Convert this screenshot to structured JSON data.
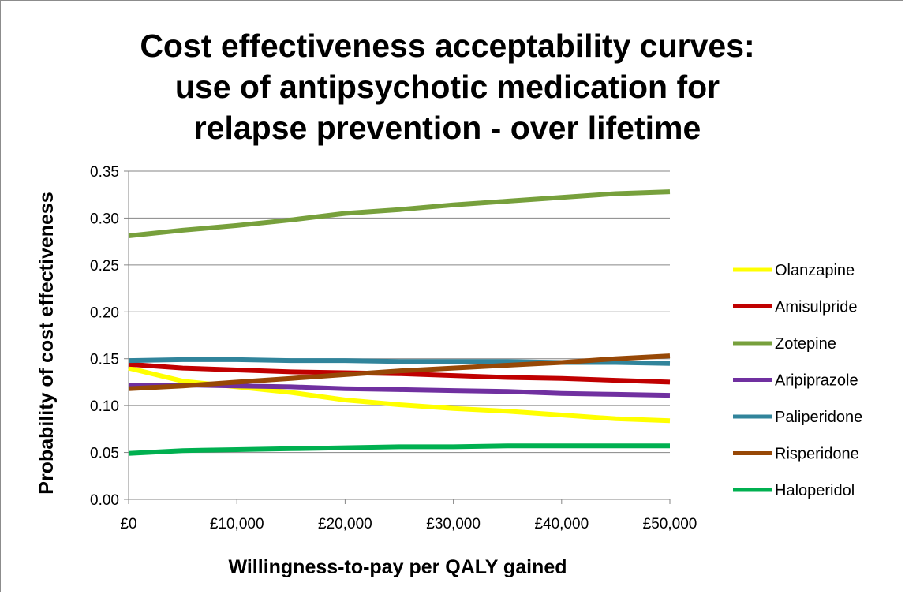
{
  "chart_data": {
    "type": "line",
    "title_lines": [
      "Cost effectiveness acceptability curves:",
      "use of antipsychotic medication for",
      "relapse prevention - over lifetime"
    ],
    "xlabel": "Willingness-to-pay per QALY gained",
    "ylabel": "Probability of cost effectiveness",
    "x_ticks": [
      0,
      10000,
      20000,
      30000,
      40000,
      50000
    ],
    "x_tick_labels": [
      "£0",
      "£10,000",
      "£20,000",
      "£30,000",
      "£40,000",
      "£50,000"
    ],
    "y_ticks": [
      0,
      0.05,
      0.1,
      0.15,
      0.2,
      0.25,
      0.3,
      0.35
    ],
    "y_tick_labels": [
      "0.00",
      "0.05",
      "0.10",
      "0.15",
      "0.20",
      "0.25",
      "0.30",
      "0.35"
    ],
    "xlim": [
      0,
      50000
    ],
    "ylim": [
      0,
      0.35
    ],
    "grid": "horizontal",
    "legend_position": "right",
    "x": [
      0,
      5000,
      10000,
      15000,
      20000,
      25000,
      30000,
      35000,
      40000,
      45000,
      50000
    ],
    "series": [
      {
        "name": "Olanzapine",
        "color": "#ffff00",
        "values": [
          0.14,
          0.126,
          0.12,
          0.114,
          0.106,
          0.101,
          0.097,
          0.094,
          0.09,
          0.086,
          0.084
        ]
      },
      {
        "name": "Amisulpride",
        "color": "#c00000",
        "values": [
          0.144,
          0.14,
          0.138,
          0.136,
          0.135,
          0.134,
          0.132,
          0.13,
          0.129,
          0.127,
          0.125
        ]
      },
      {
        "name": "Zotepine",
        "color": "#77a03c",
        "values": [
          0.281,
          0.287,
          0.292,
          0.298,
          0.305,
          0.309,
          0.314,
          0.318,
          0.322,
          0.326,
          0.328
        ]
      },
      {
        "name": "Aripiprazole",
        "color": "#7030a0",
        "values": [
          0.122,
          0.122,
          0.121,
          0.12,
          0.118,
          0.117,
          0.116,
          0.115,
          0.113,
          0.112,
          0.111
        ]
      },
      {
        "name": "Paliperidone",
        "color": "#31849b",
        "values": [
          0.148,
          0.149,
          0.149,
          0.148,
          0.148,
          0.147,
          0.147,
          0.147,
          0.146,
          0.146,
          0.145
        ]
      },
      {
        "name": "Risperidone",
        "color": "#974806",
        "values": [
          0.118,
          0.121,
          0.125,
          0.129,
          0.133,
          0.137,
          0.14,
          0.143,
          0.146,
          0.15,
          0.153
        ]
      },
      {
        "name": "Haloperidol",
        "color": "#00b050",
        "values": [
          0.049,
          0.052,
          0.053,
          0.054,
          0.055,
          0.056,
          0.056,
          0.057,
          0.057,
          0.057,
          0.057
        ]
      }
    ]
  }
}
